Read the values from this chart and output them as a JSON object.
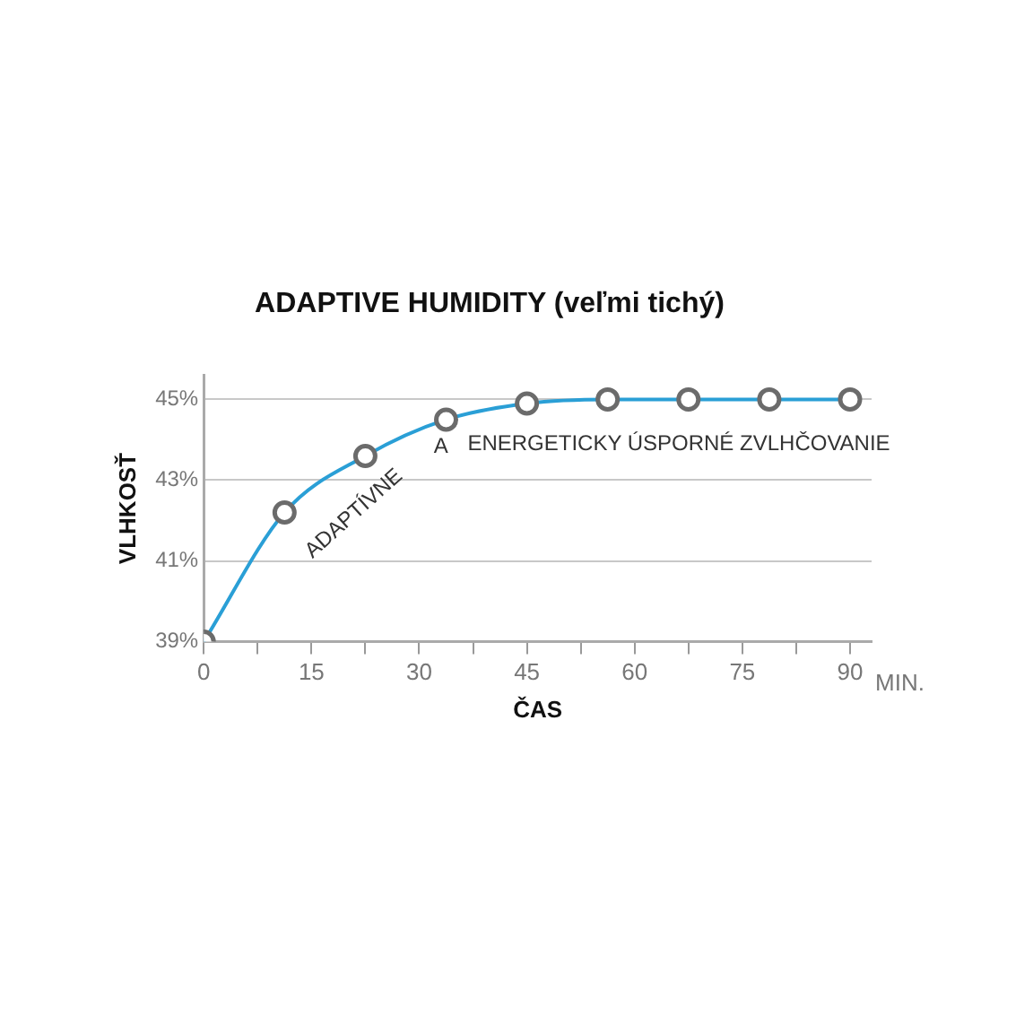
{
  "chart_data": {
    "type": "line",
    "title": "ADAPTIVE HUMIDITY (veľmi tichý)",
    "xlabel": "ČAS",
    "ylabel": "VLHKOSŤ",
    "x": [
      0,
      11.25,
      22.5,
      33.75,
      45,
      56.25,
      67.5,
      78.75,
      90
    ],
    "series": [
      {
        "color": "#2a9fd6",
        "values": [
          39,
          42.2,
          43.6,
          44.5,
          44.9,
          45,
          45,
          45,
          45
        ]
      }
    ],
    "xlim": [
      0,
      93
    ],
    "xticks": [
      0,
      {
        "value": 7.5,
        "label": null
      },
      15,
      {
        "value": 22.5,
        "label": null
      },
      30,
      {
        "value": 37.5,
        "label": null
      },
      45,
      {
        "value": 52.5,
        "label": null
      },
      60,
      {
        "value": 67.5,
        "label": null
      },
      75,
      {
        "value": 82.5,
        "label": null
      },
      90
    ],
    "ylim": [
      39,
      45.6
    ],
    "yticks": [
      {
        "value": 39,
        "label": "39%"
      },
      {
        "value": 41,
        "label": "41%"
      },
      {
        "value": 43,
        "label": "43%"
      },
      {
        "value": 45,
        "label": "45%"
      }
    ],
    "grid": "y",
    "marker": "circle",
    "line_style": "solid",
    "legend": false,
    "annotations": [
      "ADAPTÍVNE",
      "A",
      "ENERGETICKY ÚSPORNÉ ZVLHČOVANIE",
      "MIN."
    ]
  }
}
